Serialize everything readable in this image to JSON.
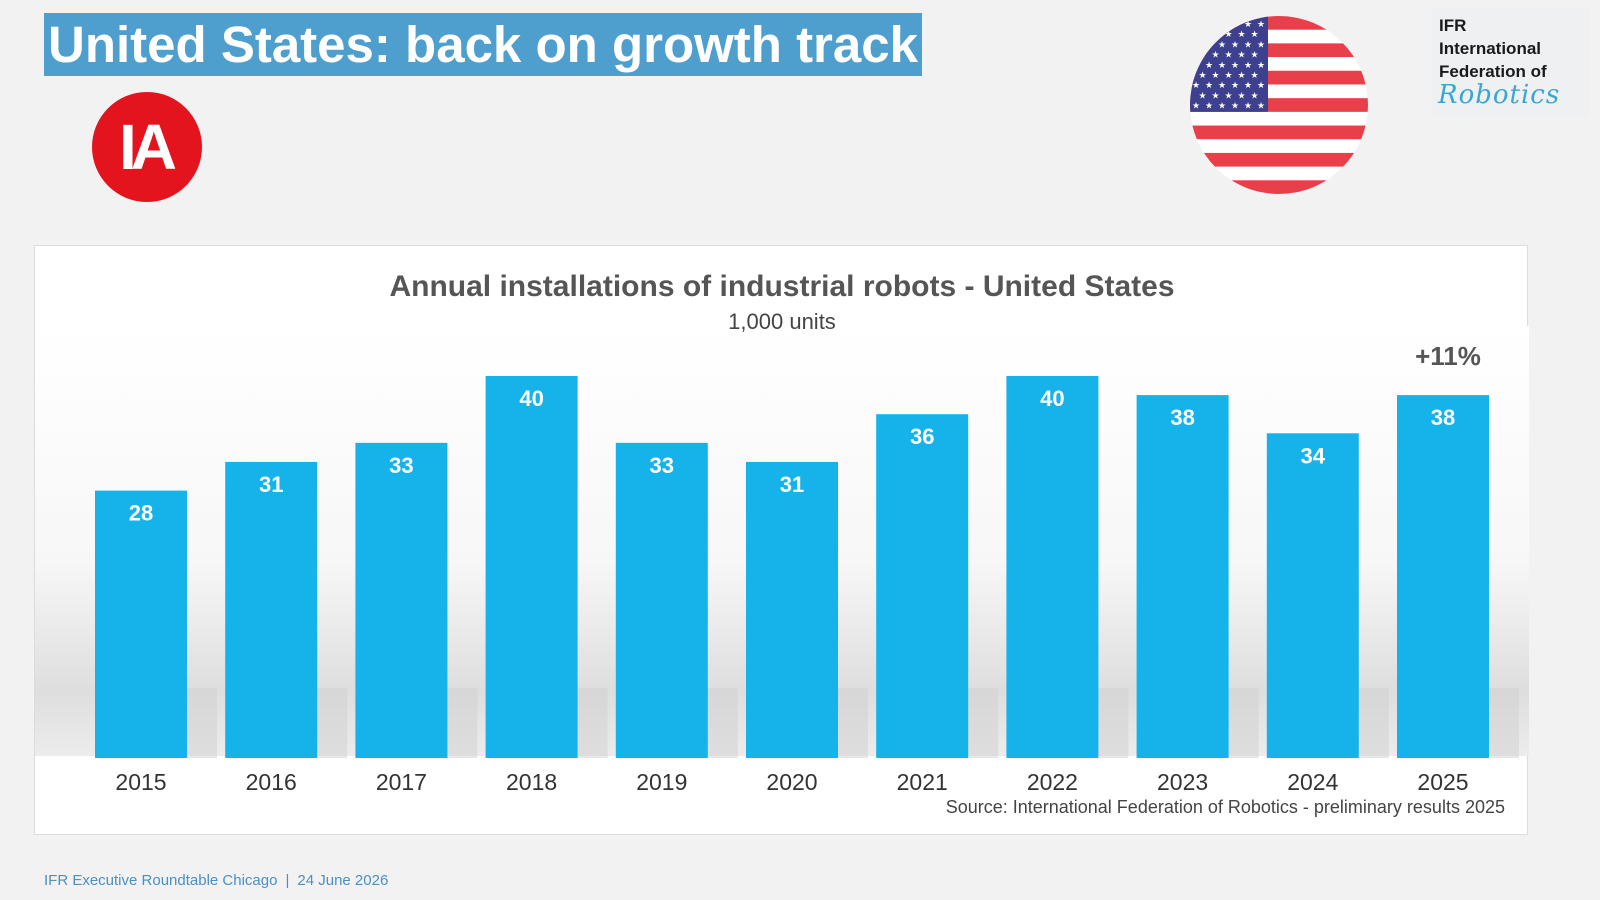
{
  "slide": {
    "title": "United States: back on growth track"
  },
  "logos": {
    "ia_text": "IA",
    "ifr_lines": [
      "IFR",
      "International",
      "Federation of"
    ],
    "ifr_script": "Robotics",
    "flag_icon": "us-flag-icon"
  },
  "colors": {
    "title_bg": "#4f9fce",
    "bar": "#16b3ea",
    "ia_red": "#e3141e",
    "footer": "#4b90c2"
  },
  "chart_data": {
    "type": "bar",
    "title": "Annual installations of industrial robots - United States",
    "subtitle": "1,000 units",
    "categories": [
      "2015",
      "2016",
      "2017",
      "2018",
      "2019",
      "2020",
      "2021",
      "2022",
      "2023",
      "2024",
      "2025"
    ],
    "values": [
      28,
      31,
      33,
      40,
      33,
      31,
      36,
      40,
      38,
      34,
      38
    ],
    "annotation": "+11%",
    "source": "Source: International Federation of Robotics - preliminary results 2025",
    "ylim": [
      0,
      40
    ],
    "grid": false,
    "legend": "none"
  },
  "footer": {
    "event": "IFR Executive Roundtable Chicago",
    "separator": "|",
    "date": "24 June 2026"
  }
}
